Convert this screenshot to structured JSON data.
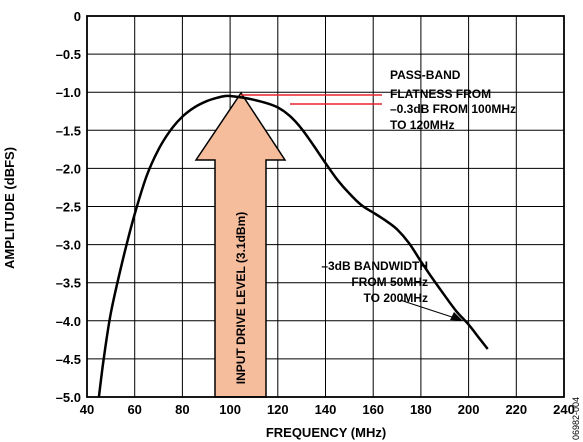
{
  "chart_data": {
    "type": "line",
    "xlabel": "FREQUENCY (MHz)",
    "ylabel": "AMPLITUDE (dBFS)",
    "xlim": [
      40,
      240
    ],
    "ylim": [
      -5.0,
      0
    ],
    "grid": true,
    "x_ticks": [
      40,
      60,
      80,
      100,
      120,
      140,
      160,
      180,
      200,
      220,
      240
    ],
    "x_tick_labels": [
      "40",
      "60",
      "80",
      "100",
      "120",
      "140",
      "160",
      "180",
      "200",
      "220",
      "240"
    ],
    "y_ticks": [
      0,
      -0.5,
      -1.0,
      -1.5,
      -2.0,
      -2.5,
      -3.0,
      -3.5,
      -4.0,
      -4.5,
      -5.0
    ],
    "y_tick_labels": [
      "0",
      "–0.5",
      "–1.0",
      "–1.5",
      "–2.0",
      "–2.5",
      "–3.0",
      "–3.5",
      "–4.0",
      "–4.5",
      "–5.0"
    ],
    "series": [
      {
        "x": [
          45,
          47,
          50,
          55,
          60,
          65,
          70,
          75,
          80,
          85,
          90,
          95,
          98,
          100,
          105,
          110,
          115,
          120,
          125,
          130,
          135,
          140,
          145,
          150,
          155,
          160,
          165,
          170,
          175,
          180,
          185,
          190,
          195,
          200,
          205,
          208
        ],
        "y": [
          -5.0,
          -4.5,
          -3.9,
          -3.2,
          -2.6,
          -2.1,
          -1.75,
          -1.5,
          -1.32,
          -1.2,
          -1.12,
          -1.07,
          -1.05,
          -1.05,
          -1.07,
          -1.1,
          -1.14,
          -1.2,
          -1.31,
          -1.48,
          -1.7,
          -1.93,
          -2.15,
          -2.33,
          -2.48,
          -2.58,
          -2.68,
          -2.8,
          -2.98,
          -3.22,
          -3.45,
          -3.67,
          -3.88,
          -4.05,
          -4.25,
          -4.37
        ],
        "color": "#000000"
      }
    ],
    "annotations": {
      "passband_lines": [
        "PASS-BAND",
        "FLATNESS FROM",
        "–0.3dB FROM 100MHz",
        "TO 120MHz"
      ],
      "bandwidth_lines": [
        "–3dB BANDWIDTH",
        "FROM 50MHz",
        "TO 200MHz"
      ],
      "arrow_label": "INPUT DRIVE LEVEL (3.1dBm)",
      "figure_id": "06982-004"
    },
    "colors": {
      "arrow_fill": "#f6bd9d",
      "arrow_stroke": "#000000",
      "marker_lines": "#e8242c",
      "grid": "#000000"
    }
  }
}
